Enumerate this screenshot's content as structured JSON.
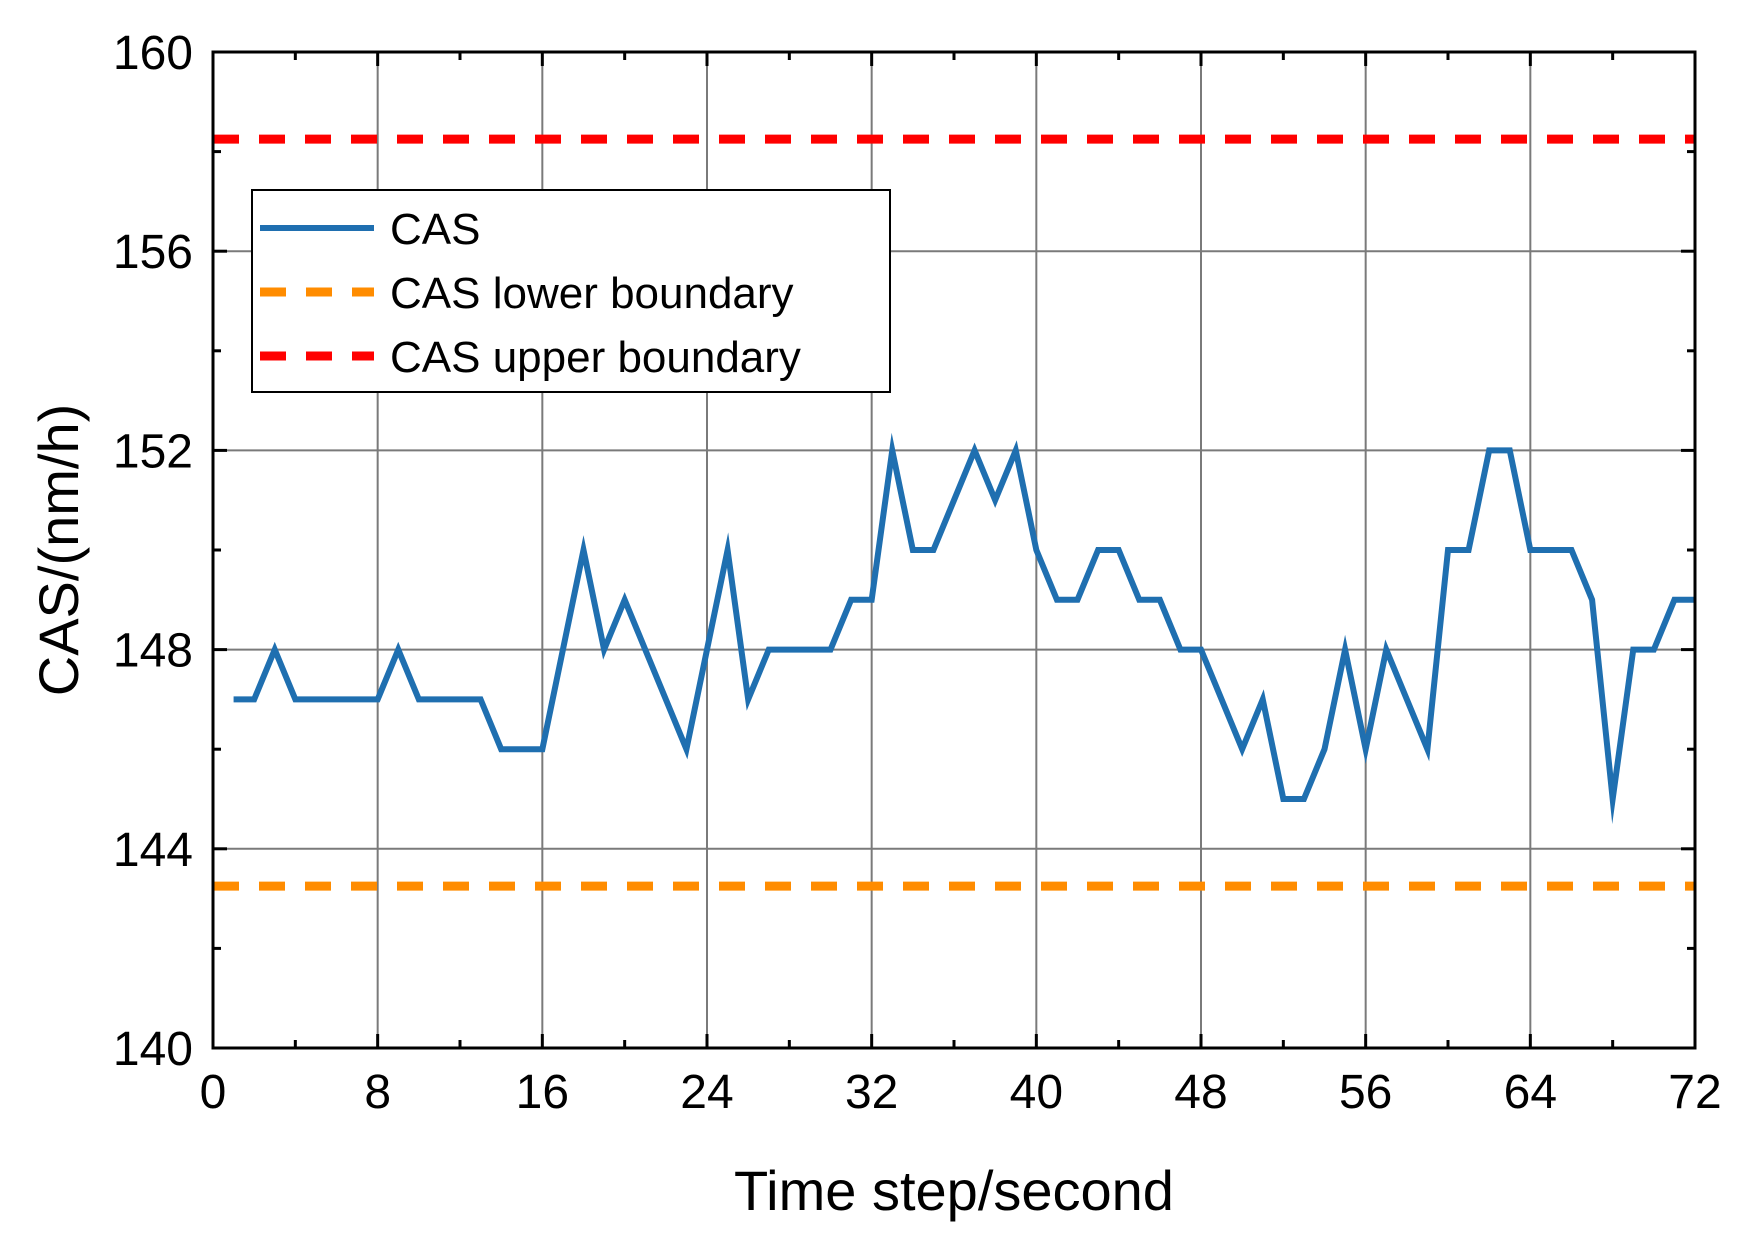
{
  "chart_data": {
    "type": "line",
    "title": "",
    "xlabel": "Time step/second",
    "ylabel": "CAS/(nm/h)",
    "xlim": [
      0,
      72
    ],
    "ylim": [
      140,
      160
    ],
    "xticks": [
      0,
      8,
      16,
      24,
      32,
      40,
      48,
      56,
      64,
      72
    ],
    "yticks": [
      140,
      144,
      148,
      152,
      156,
      160
    ],
    "grid": true,
    "legend_position": "top-left",
    "series": [
      {
        "name": "CAS",
        "color": "#1f6fb0",
        "style": "solid",
        "x": [
          1,
          2,
          3,
          4,
          5,
          6,
          7,
          8,
          9,
          10,
          11,
          12,
          13,
          14,
          15,
          16,
          17,
          18,
          19,
          20,
          21,
          22,
          23,
          24,
          25,
          26,
          27,
          28,
          29,
          30,
          31,
          32,
          33,
          34,
          35,
          36,
          37,
          38,
          39,
          40,
          41,
          42,
          43,
          44,
          45,
          46,
          47,
          48,
          49,
          50,
          51,
          52,
          53,
          54,
          55,
          56,
          57,
          58,
          59,
          60,
          61,
          62,
          63,
          64,
          65,
          66,
          67,
          68,
          69,
          70,
          71,
          72
        ],
        "y": [
          147,
          147,
          148,
          147,
          147,
          147,
          147,
          147,
          148,
          147,
          147,
          147,
          147,
          146,
          146,
          146,
          148,
          150,
          148,
          149,
          148,
          147,
          146,
          148,
          150,
          147,
          148,
          148,
          148,
          148,
          149,
          149,
          152,
          150,
          150,
          151,
          152,
          151,
          152,
          150,
          149,
          149,
          150,
          150,
          149,
          149,
          148,
          148,
          147,
          146,
          147,
          145,
          145,
          146,
          148,
          146,
          148,
          147,
          146,
          150,
          150,
          152,
          152,
          150,
          150,
          150,
          149,
          145,
          148,
          148,
          149,
          149
        ]
      },
      {
        "name": "CAS lower boundary",
        "color": "#ff8c00",
        "style": "dashed",
        "x": [
          0,
          72
        ],
        "y": [
          143.25,
          143.25
        ]
      },
      {
        "name": "CAS upper boundary",
        "color": "#ff0000",
        "style": "dashed",
        "x": [
          0,
          72
        ],
        "y": [
          158.25,
          158.25
        ]
      }
    ]
  }
}
